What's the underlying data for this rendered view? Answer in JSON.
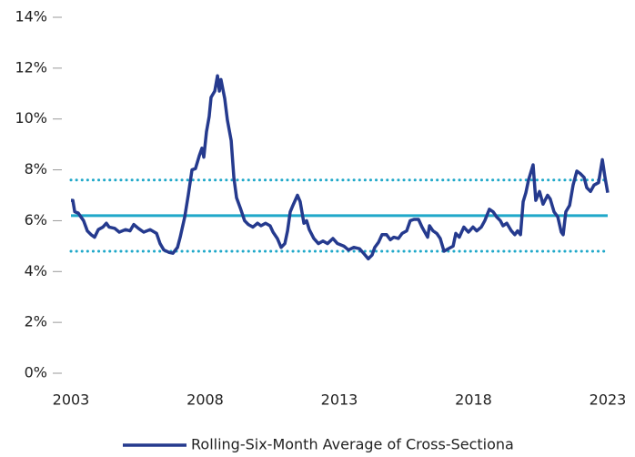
{
  "chart_data": {
    "type": "line",
    "legend_label": "Rolling-Six-Month Average of Cross-Sectiona",
    "legend_position": "bottom",
    "xlim": [
      2003,
      2023
    ],
    "xticks": [
      2003,
      2008,
      2013,
      2018,
      2023
    ],
    "ylim": [
      0,
      14
    ],
    "yticks": [
      {
        "value": 0,
        "label": "0%"
      },
      {
        "value": 2,
        "label": "2%"
      },
      {
        "value": 4,
        "label": "4%"
      },
      {
        "value": 6,
        "label": "6%"
      },
      {
        "value": 8,
        "label": "8%"
      },
      {
        "value": 10,
        "label": "10%"
      },
      {
        "value": 12,
        "label": "12%"
      },
      {
        "value": 14,
        "label": "14%"
      }
    ],
    "grid": false,
    "reference_lines": [
      {
        "value": 6.2,
        "style": "solid",
        "color": "#1fa8c9"
      },
      {
        "value": 7.6,
        "style": "dotted",
        "color": "#1fa8c9"
      },
      {
        "value": 4.8,
        "style": "dotted",
        "color": "#1fa8c9"
      }
    ],
    "series": [
      {
        "name": "Rolling-Six-Month Average of Cross-Sectiona",
        "color": "#253a8e",
        "x": [
          2003.0,
          2003.07,
          2003.14,
          2003.27,
          2003.47,
          2003.61,
          2003.75,
          2003.88,
          2004.02,
          2004.19,
          2004.32,
          2004.42,
          2004.63,
          2004.8,
          2005.03,
          2005.2,
          2005.34,
          2005.51,
          2005.71,
          2005.95,
          2006.19,
          2006.32,
          2006.46,
          2006.66,
          2006.8,
          2006.97,
          2007.07,
          2007.24,
          2007.37,
          2007.51,
          2007.64,
          2007.78,
          2007.88,
          2007.95,
          2008.05,
          2008.15,
          2008.22,
          2008.36,
          2008.46,
          2008.53,
          2008.59,
          2008.73,
          2008.83,
          2008.97,
          2009.07,
          2009.17,
          2009.31,
          2009.47,
          2009.61,
          2009.78,
          2009.95,
          2010.08,
          2010.25,
          2010.42,
          2010.53,
          2010.69,
          2010.83,
          2010.97,
          2011.07,
          2011.17,
          2011.27,
          2011.44,
          2011.54,
          2011.68,
          2011.78,
          2011.88,
          2012.05,
          2012.22,
          2012.39,
          2012.56,
          2012.76,
          2012.93,
          2013.17,
          2013.34,
          2013.54,
          2013.75,
          2013.92,
          2014.08,
          2014.22,
          2014.32,
          2014.46,
          2014.59,
          2014.76,
          2014.9,
          2015.03,
          2015.2,
          2015.34,
          2015.51,
          2015.64,
          2015.78,
          2015.95,
          2016.08,
          2016.29,
          2016.36,
          2016.49,
          2016.63,
          2016.76,
          2016.9,
          2017.07,
          2017.24,
          2017.34,
          2017.47,
          2017.64,
          2017.81,
          2017.98,
          2018.12,
          2018.29,
          2018.42,
          2018.59,
          2018.73,
          2018.86,
          2019.0,
          2019.1,
          2019.24,
          2019.41,
          2019.54,
          2019.64,
          2019.75,
          2019.85,
          2019.95,
          2020.05,
          2020.22,
          2020.32,
          2020.46,
          2020.59,
          2020.76,
          2020.86,
          2021.0,
          2021.14,
          2021.27,
          2021.34,
          2021.44,
          2021.58,
          2021.71,
          2021.85,
          2021.98,
          2022.12,
          2022.22,
          2022.36,
          2022.49,
          2022.66,
          2022.8,
          2022.9,
          2023.0
        ],
        "values": [
          6.8,
          6.8,
          6.35,
          6.3,
          6.0,
          5.6,
          5.45,
          5.35,
          5.65,
          5.75,
          5.9,
          5.75,
          5.7,
          5.55,
          5.65,
          5.6,
          5.85,
          5.7,
          5.55,
          5.65,
          5.5,
          5.1,
          4.85,
          4.75,
          4.72,
          4.95,
          5.35,
          6.15,
          7.0,
          8.0,
          8.05,
          8.55,
          8.85,
          8.5,
          9.5,
          10.1,
          10.85,
          11.1,
          11.7,
          11.1,
          11.55,
          10.8,
          9.95,
          9.15,
          7.7,
          6.9,
          6.5,
          6.0,
          5.85,
          5.75,
          5.9,
          5.8,
          5.9,
          5.8,
          5.55,
          5.3,
          4.95,
          5.1,
          5.6,
          6.35,
          6.6,
          7.0,
          6.75,
          5.9,
          6.0,
          5.65,
          5.3,
          5.1,
          5.2,
          5.1,
          5.3,
          5.1,
          5.0,
          4.85,
          4.95,
          4.9,
          4.7,
          4.5,
          4.65,
          4.95,
          5.15,
          5.45,
          5.45,
          5.25,
          5.35,
          5.3,
          5.5,
          5.6,
          6.0,
          6.05,
          6.05,
          5.75,
          5.35,
          5.8,
          5.6,
          5.5,
          5.3,
          4.8,
          4.9,
          5.0,
          5.5,
          5.35,
          5.75,
          5.55,
          5.75,
          5.6,
          5.75,
          6.0,
          6.45,
          6.35,
          6.15,
          6.0,
          5.8,
          5.9,
          5.6,
          5.45,
          5.6,
          5.45,
          6.75,
          7.1,
          7.6,
          8.2,
          6.8,
          7.15,
          6.65,
          7.0,
          6.85,
          6.35,
          6.15,
          5.55,
          5.45,
          6.35,
          6.6,
          7.4,
          7.95,
          7.85,
          7.7,
          7.3,
          7.15,
          7.4,
          7.5,
          8.4,
          7.7,
          7.1
        ]
      }
    ]
  }
}
